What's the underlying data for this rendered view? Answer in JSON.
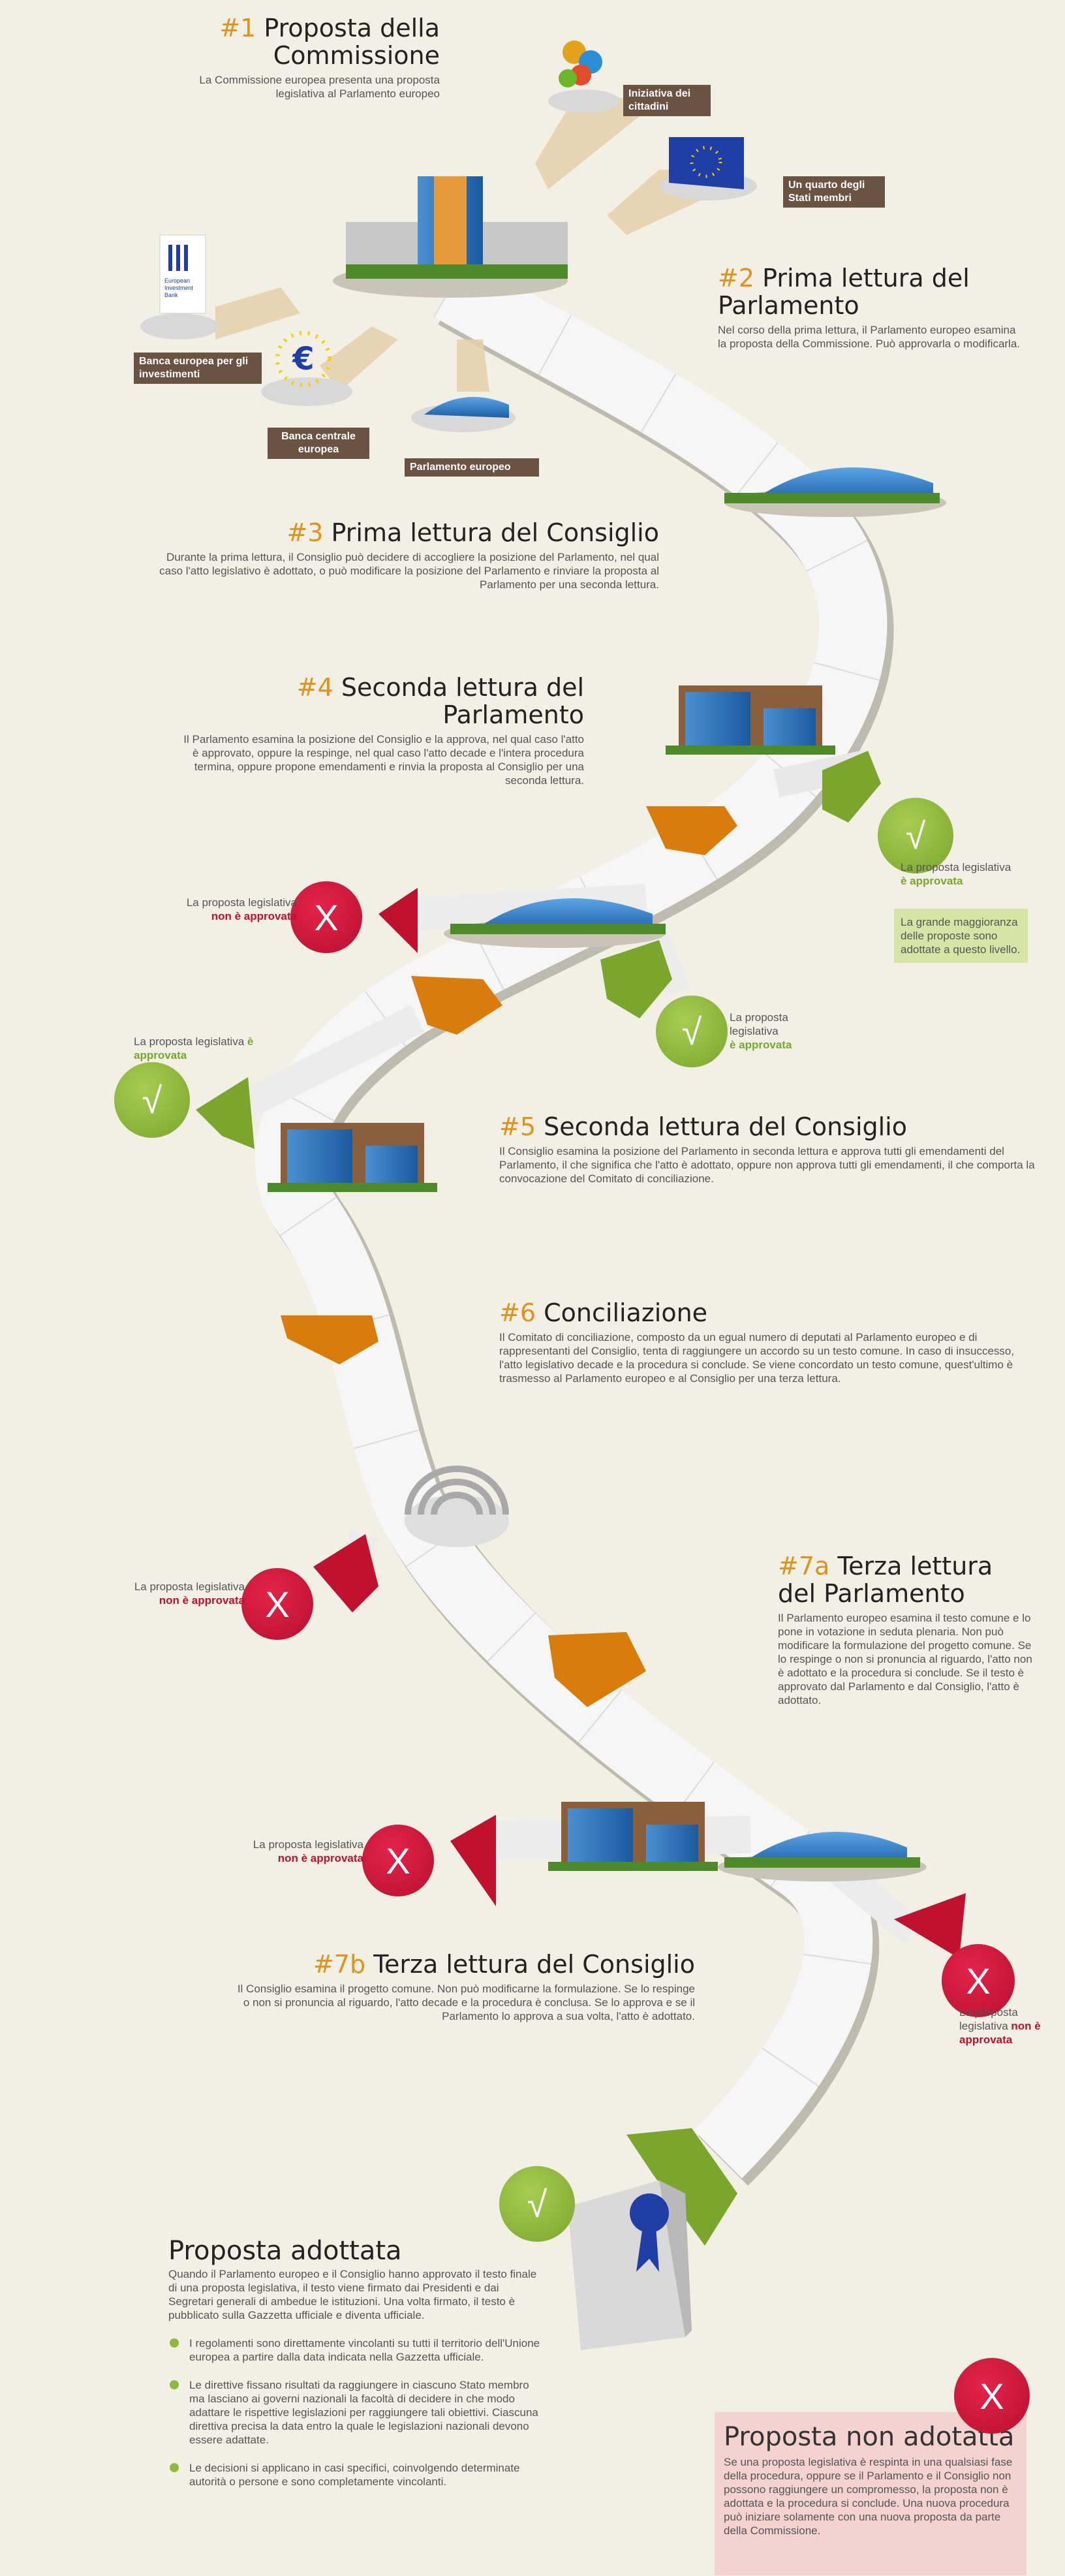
{
  "steps": {
    "s1": {
      "num": "#1",
      "title": "Proposta della Commissione",
      "text": "La Commissione europea presenta una proposta legislativa al Parlamento europeo"
    },
    "s2": {
      "num": "#2",
      "title": "Prima lettura del Parlamento",
      "text": "Nel corso della prima lettura, il Parlamento europeo esamina la proposta della Commissione. Può approvarla o modificarla."
    },
    "s3": {
      "num": "#3",
      "title": "Prima lettura del Consiglio",
      "text": "Durante la prima lettura, il Consiglio può decidere di accogliere la posizione del Parlamento, nel qual caso l'atto legislativo è adottato, o può modificare la posizione del Parlamento e rinviare la proposta al Parlamento per una seconda lettura."
    },
    "s4": {
      "num": "#4",
      "title": "Seconda lettura del Parlamento",
      "text": "Il Parlamento esamina la posizione del Consiglio e la approva, nel qual caso l'atto è approvato, oppure la respinge, nel qual caso l'atto decade e l'intera procedura termina, oppure propone emendamenti e rinvia la proposta al Consiglio per una seconda lettura."
    },
    "s5": {
      "num": "#5",
      "title": "Seconda lettura del Consiglio",
      "text": "Il Consiglio esamina la posizione del Parlamento in seconda lettura e approva tutti gli emendamenti del Parlamento, il che significa che l'atto è adottato, oppure non approva tutti gli emendamenti, il che comporta la convocazione del Comitato di conciliazione."
    },
    "s6": {
      "num": "#6",
      "title": "Conciliazione",
      "text": "Il Comitato di conciliazione, composto da un egual numero di deputati al Parlamento europeo e di rappresentanti del Consiglio, tenta di raggiungere un accordo su un testo comune. In caso di insuccesso, l'atto legislativo decade e la procedura si conclude. Se viene concordato un testo comune, quest'ultimo è trasmesso al Parlamento europeo e al Consiglio per una terza lettura."
    },
    "s7a": {
      "num": "#7a",
      "title": "Terza lettura del Parlamento",
      "text": "Il Parlamento europeo esamina il testo comune e lo pone in votazione in seduta plenaria. Non può modificare la formulazione del progetto comune. Se lo respinge o non si pronuncia al riguardo, l'atto non è adottato e la procedura si conclude. Se il testo è approvato dal Parlamento e dal Consiglio, l'atto è adottato."
    },
    "s7b": {
      "num": "#7b",
      "title": "Terza lettura del Consiglio",
      "text": "Il Consiglio esamina il progetto comune. Non può modificarne la formulazione. Se lo respinge o non si pronuncia al riguardo, l'atto decade e la procedura è conclusa. Se lo approva e se il Parlamento lo approva a sua volta, l'atto è adottato."
    }
  },
  "initiators": {
    "citizens": "Iniziativa dei cittadini",
    "states": "Un quarto degli Stati membri",
    "eib": "Banca europea per gli investimenti",
    "ecb": "Banca centrale europea",
    "parliament": "Parlamento europeo"
  },
  "outcome": {
    "prefix": "La proposta legislativa",
    "approved": "è approvata",
    "not_approved": "non è approvata",
    "check_symbol": "√",
    "cross_symbol": "X"
  },
  "majority_note": "La grande maggioranza delle proposte sono adottate a questo livello.",
  "eib_logo_text": "European Investment Bank",
  "adopted": {
    "title": "Proposta adottata",
    "text": "Quando il Parlamento europeo e il Consiglio hanno approvato il testo finale di una proposta legislativa, il testo viene firmato dai Presidenti e dai Segretari generali di ambedue le istituzioni. Una volta firmato, il testo è pubblicato sulla Gazzetta ufficiale e diventa ufficiale.",
    "bullets": [
      "I regolamenti sono direttamente vincolanti su tutti il territorio dell'Unione europea a partire dalla data indicata nella Gazzetta ufficiale.",
      "Le direttive fissano risultati da raggiungere in ciascuno Stato membro ma lasciano ai governi nazionali la facoltà di decidere in che modo adattare le rispettive legislazioni per raggiungere tali obiettivi. Ciascuna direttiva precisa la data entro la quale le legislazioni nazionali devono essere adattate.",
      "Le decisioni si applicano in casi specifici, coinvolgendo determinate autorità o persone e sono completamente vincolanti."
    ]
  },
  "not_adopted": {
    "title": "Proposta non adotatta",
    "text": "Se una proposta legislativa è respinta in una qualsiasi fase della procedura, oppure se il Parlamento e il Consiglio non possono raggiungere un compromesso, la proposta non è adottata e la procedura si conclude. Una nuova procedura può iniziare solamente con una nuova proposta da parte della Commissione."
  },
  "colors": {
    "background": "#f2efe4",
    "accent_orange": "#e0921c",
    "approve_green": "#8dba3a",
    "reject_red": "#c0112f",
    "label_brown": "#6b5344",
    "eu_blue": "#1f3fa6",
    "eu_star": "#f5d000"
  }
}
